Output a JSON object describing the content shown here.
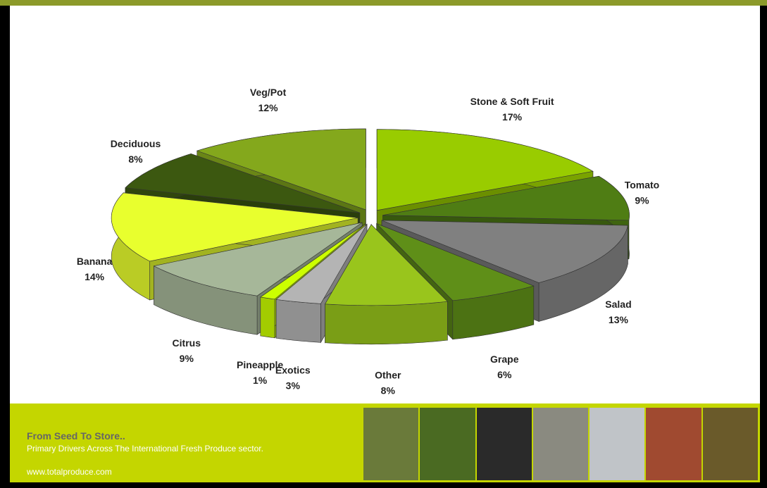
{
  "chart_data": {
    "type": "pie",
    "categories": [
      "Stone & Soft Fruit",
      "Tomato",
      "Salad",
      "Grape",
      "Other",
      "Exotics",
      "Pineapple",
      "Citrus",
      "Banana",
      "Deciduous",
      "Veg/Pot"
    ],
    "values": [
      17,
      9,
      13,
      6,
      8,
      3,
      1,
      9,
      14,
      8,
      12
    ],
    "value_labels": [
      "17%",
      "9%",
      "13%",
      "6%",
      "8%",
      "3%",
      "1%",
      "9%",
      "14%",
      "8%",
      "12%"
    ],
    "colors": [
      "#99cc00",
      "#4f7d14",
      "#808080",
      "#5f8f18",
      "#99c51c",
      "#b4b4b4",
      "#ccff00",
      "#a6b799",
      "#e8ff2e",
      "#3c5810",
      "#84a81c"
    ]
  },
  "footer": {
    "heading": "From Seed To Store..",
    "subheading": "Primary Drivers Across The International Fresh Produce sector.",
    "url": "www.totalproduce.com"
  }
}
